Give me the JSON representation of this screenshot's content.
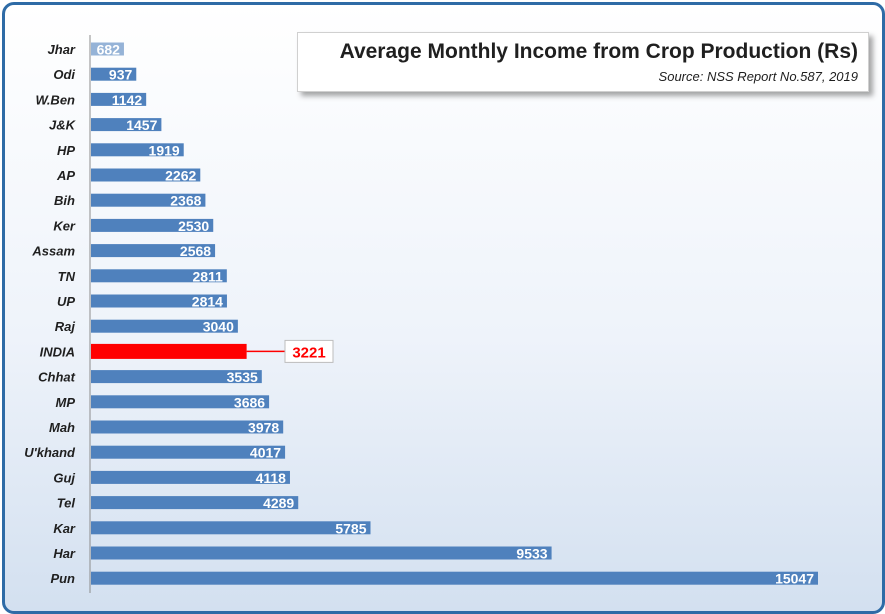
{
  "chart_data": {
    "type": "bar",
    "orientation": "horizontal",
    "title": "Average Monthly Income from Crop Production (Rs)",
    "subtitle": "Source: NSS Report No.587, 2019",
    "categories": [
      "Jhar",
      "Odi",
      "W.Ben",
      "J&K",
      "HP",
      "AP",
      "Bih",
      "Ker",
      "Assam",
      "TN",
      "UP",
      "Raj",
      "INDIA",
      "Chhat",
      "MP",
      "Mah",
      "U'khand",
      "Guj",
      "Tel",
      "Kar",
      "Har",
      "Pun"
    ],
    "values": [
      682,
      937,
      1142,
      1457,
      1919,
      2262,
      2368,
      2530,
      2568,
      2811,
      2814,
      3040,
      3221,
      3535,
      3686,
      3978,
      4017,
      4118,
      4289,
      5785,
      9533,
      15047
    ],
    "highlight_category": "INDIA",
    "callout_label": "3221",
    "xlim": [
      0,
      15047
    ],
    "grid": false,
    "colors": {
      "bar": "#4f81bd",
      "bar_first": "#95b3d7",
      "highlight": "#ff0000",
      "label_text": "#ffffff",
      "callout_text": "#ff0000",
      "frame": "#2e6ba6"
    }
  }
}
